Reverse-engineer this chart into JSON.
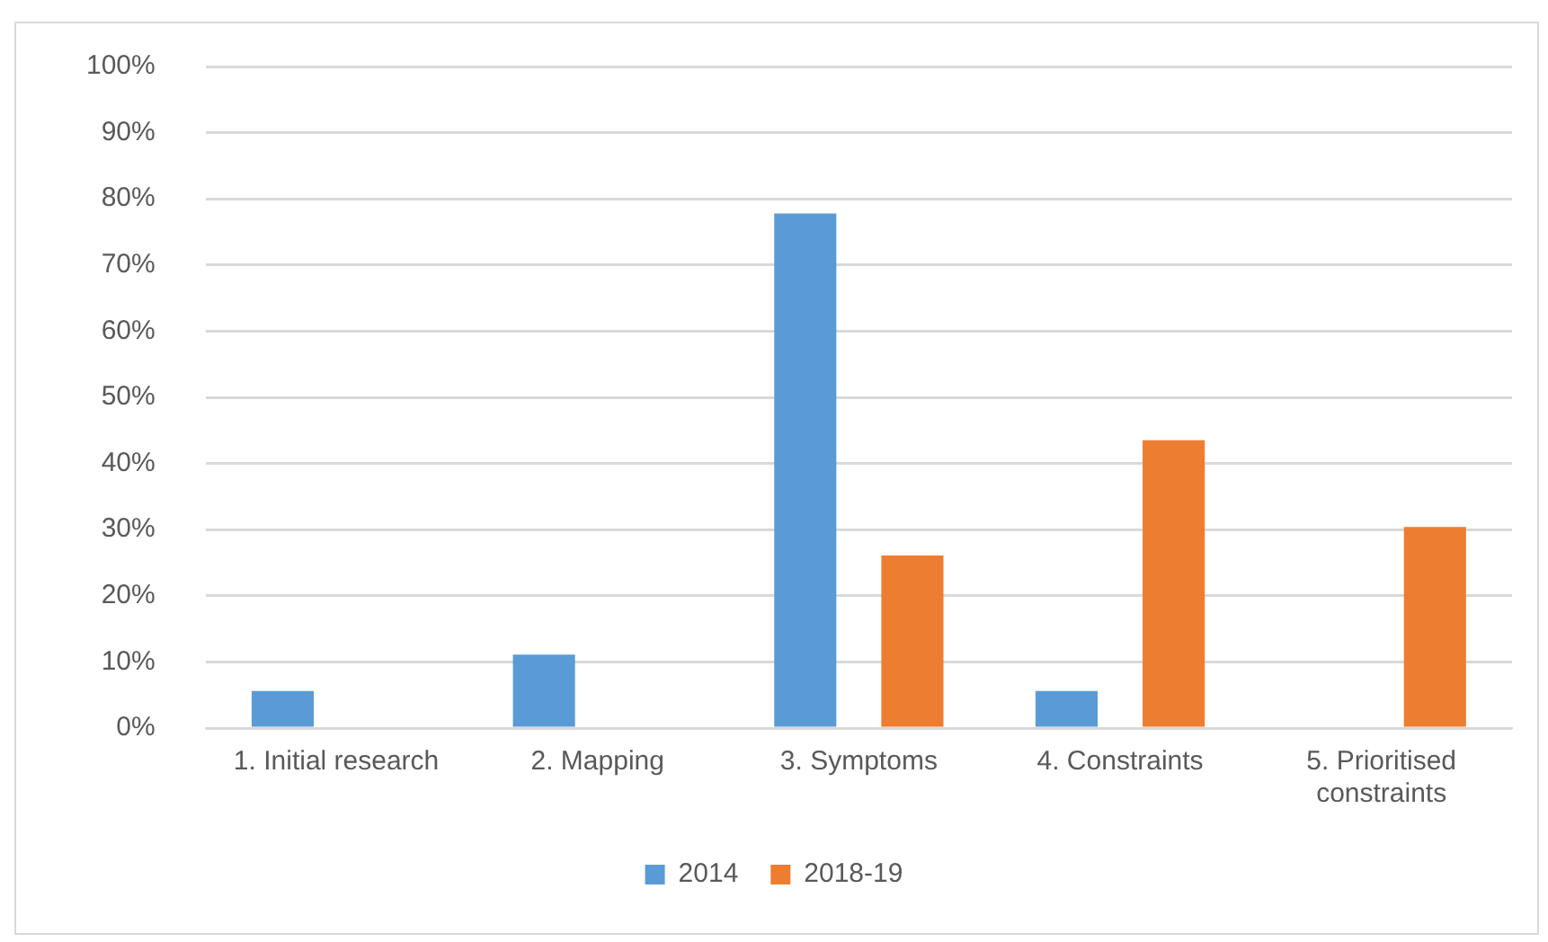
{
  "chart_data": {
    "type": "bar",
    "categories": [
      "1. Initial research",
      "2. Mapping",
      "3. Symptoms",
      "4. Constraints",
      "5. Prioritised constraints"
    ],
    "series": [
      {
        "name": "2014",
        "color": "#5b9bd5",
        "values": [
          5.6,
          11.1,
          77.8,
          5.6,
          0
        ]
      },
      {
        "name": "2018-19",
        "color": "#ed7d31",
        "values": [
          0,
          0,
          26.1,
          43.5,
          30.4
        ]
      }
    ],
    "ylim": [
      0,
      100
    ],
    "yticks": [
      {
        "value": 0,
        "label": "0%"
      },
      {
        "value": 10,
        "label": "10%"
      },
      {
        "value": 20,
        "label": "20%"
      },
      {
        "value": 30,
        "label": "30%"
      },
      {
        "value": 40,
        "label": "40%"
      },
      {
        "value": 50,
        "label": "50%"
      },
      {
        "value": 60,
        "label": "60%"
      },
      {
        "value": 70,
        "label": "70%"
      },
      {
        "value": 80,
        "label": "80%"
      },
      {
        "value": 90,
        "label": "90%"
      },
      {
        "value": 100,
        "label": "100%"
      }
    ],
    "grid": "y",
    "legend": "bottom"
  }
}
